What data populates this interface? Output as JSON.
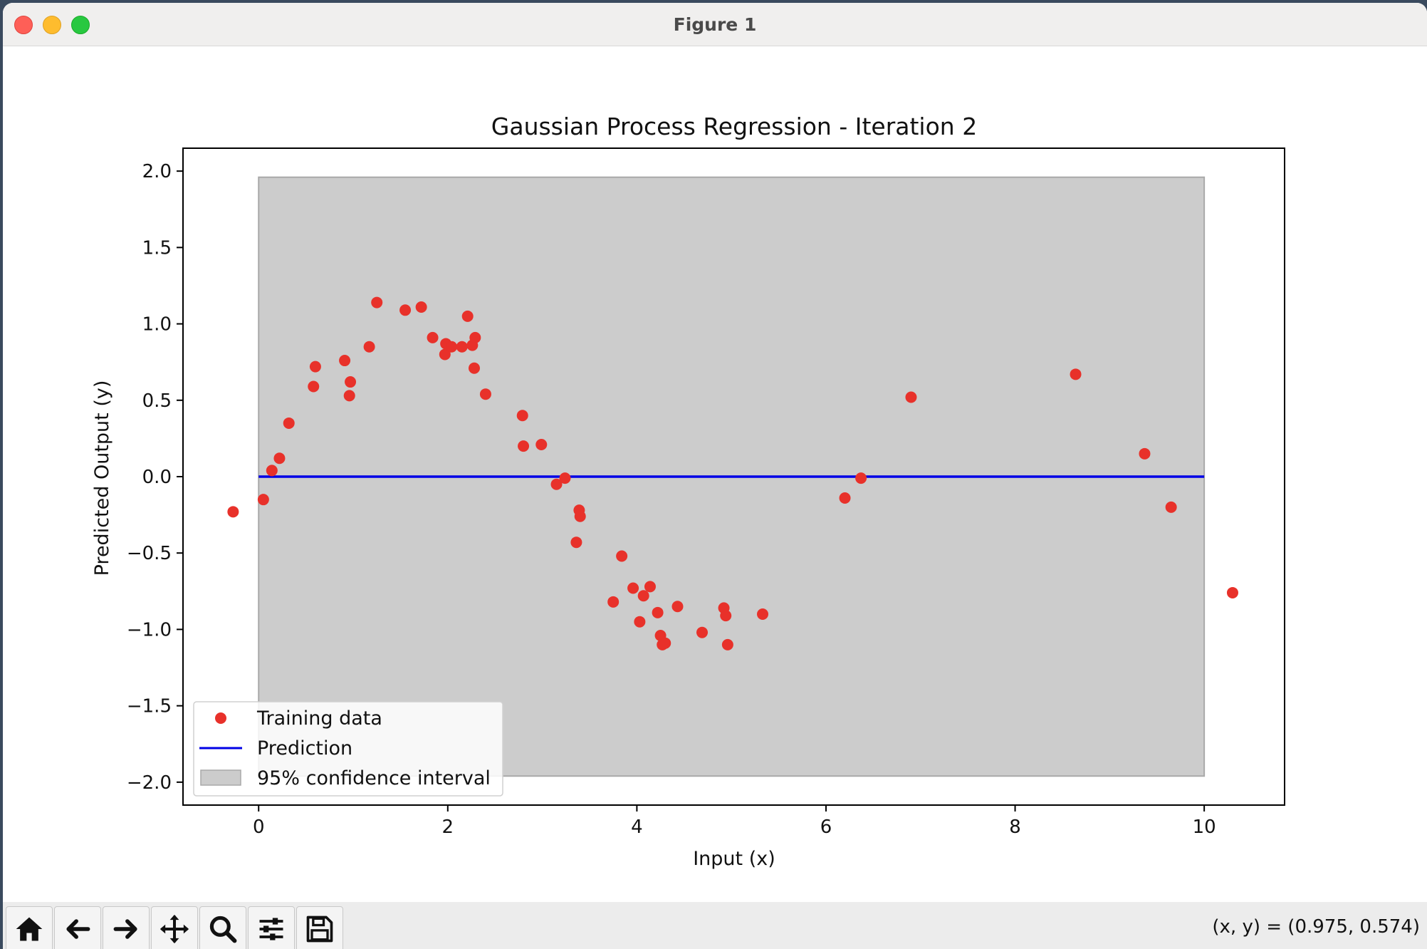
{
  "window": {
    "title": "Figure 1"
  },
  "toolbar": {
    "buttons": [
      {
        "name": "home-button",
        "icon": "home-icon"
      },
      {
        "name": "back-button",
        "icon": "arrow-left-icon"
      },
      {
        "name": "forward-button",
        "icon": "arrow-right-icon"
      },
      {
        "name": "pan-button",
        "icon": "move-icon"
      },
      {
        "name": "zoom-button",
        "icon": "magnifier-icon"
      },
      {
        "name": "configure-subplots-button",
        "icon": "sliders-icon"
      },
      {
        "name": "save-button",
        "icon": "floppy-disk-icon"
      }
    ],
    "coords": "(x, y) = (0.975, 0.574)"
  },
  "chart_data": {
    "type": "scatter",
    "title": "Gaussian Process Regression - Iteration 2",
    "xlabel": "Input (x)",
    "ylabel": "Predicted Output (y)",
    "xlim": [
      -0.8,
      10.85
    ],
    "ylim": [
      -2.15,
      2.15
    ],
    "xticks": [
      0,
      2,
      4,
      6,
      8,
      10
    ],
    "yticks": [
      2.0,
      1.5,
      1.0,
      0.5,
      0.0,
      -0.5,
      -1.0,
      -1.5,
      -2.0
    ],
    "grid": false,
    "legend_position": "lower-left",
    "legend": [
      "Training data",
      "Prediction",
      "95% confidence interval"
    ],
    "colors": {
      "points": "#e8312a",
      "line": "#0000e6",
      "band": "#cccccc",
      "band_edge": "#a9a9a9"
    },
    "confidence_interval": {
      "x": [
        0,
        10
      ],
      "lower": -1.96,
      "upper": 1.96
    },
    "prediction": {
      "x": [
        0,
        10
      ],
      "y": [
        0,
        0
      ]
    },
    "series": [
      {
        "name": "Training data",
        "points": [
          [
            -0.27,
            -0.23
          ],
          [
            0.05,
            -0.15
          ],
          [
            0.14,
            0.04
          ],
          [
            0.22,
            0.12
          ],
          [
            0.32,
            0.35
          ],
          [
            0.58,
            0.59
          ],
          [
            0.6,
            0.72
          ],
          [
            0.91,
            0.76
          ],
          [
            0.96,
            0.53
          ],
          [
            0.97,
            0.62
          ],
          [
            1.17,
            0.85
          ],
          [
            1.25,
            1.14
          ],
          [
            1.55,
            1.09
          ],
          [
            1.72,
            1.11
          ],
          [
            1.84,
            0.91
          ],
          [
            1.97,
            0.8
          ],
          [
            1.98,
            0.87
          ],
          [
            2.04,
            0.85
          ],
          [
            2.15,
            0.85
          ],
          [
            2.21,
            1.05
          ],
          [
            2.26,
            0.86
          ],
          [
            2.28,
            0.71
          ],
          [
            2.29,
            0.91
          ],
          [
            2.4,
            0.54
          ],
          [
            2.79,
            0.4
          ],
          [
            2.8,
            0.2
          ],
          [
            2.99,
            0.21
          ],
          [
            3.15,
            -0.05
          ],
          [
            3.24,
            -0.01
          ],
          [
            3.36,
            -0.43
          ],
          [
            3.39,
            -0.22
          ],
          [
            3.4,
            -0.26
          ],
          [
            3.75,
            -0.82
          ],
          [
            3.84,
            -0.52
          ],
          [
            3.96,
            -0.73
          ],
          [
            4.03,
            -0.95
          ],
          [
            4.07,
            -0.78
          ],
          [
            4.14,
            -0.72
          ],
          [
            4.22,
            -0.89
          ],
          [
            4.25,
            -1.04
          ],
          [
            4.27,
            -1.1
          ],
          [
            4.3,
            -1.09
          ],
          [
            4.43,
            -0.85
          ],
          [
            4.69,
            -1.02
          ],
          [
            4.92,
            -0.86
          ],
          [
            4.94,
            -0.91
          ],
          [
            4.96,
            -1.1
          ],
          [
            5.33,
            -0.9
          ],
          [
            6.2,
            -0.14
          ],
          [
            6.37,
            -0.01
          ],
          [
            6.9,
            0.52
          ],
          [
            8.64,
            0.67
          ],
          [
            9.37,
            0.15
          ],
          [
            9.65,
            -0.2
          ],
          [
            10.3,
            -0.76
          ]
        ]
      }
    ]
  }
}
